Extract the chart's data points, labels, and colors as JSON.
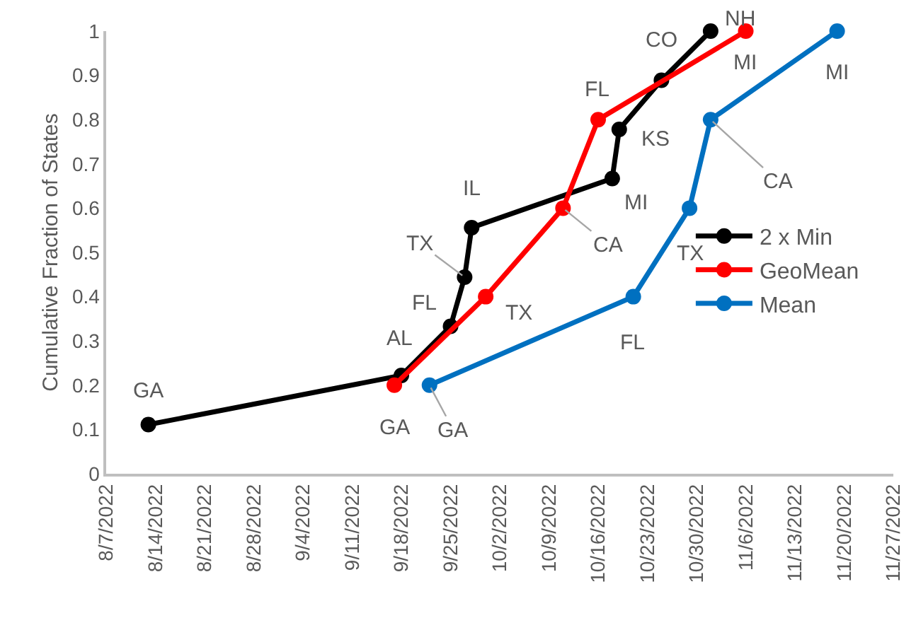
{
  "chart_data": {
    "type": "line",
    "ylabel": "Cumulative Fraction of States",
    "xlim": [
      "2022-08-07",
      "2022-11-27"
    ],
    "xticks": [
      {
        "value": "2022-08-07",
        "label": "8/7/2022"
      },
      {
        "value": "2022-08-14",
        "label": "8/14/2022"
      },
      {
        "value": "2022-08-21",
        "label": "8/21/2022"
      },
      {
        "value": "2022-08-28",
        "label": "8/28/2022"
      },
      {
        "value": "2022-09-04",
        "label": "9/4/2022"
      },
      {
        "value": "2022-09-11",
        "label": "9/11/2022"
      },
      {
        "value": "2022-09-18",
        "label": "9/18/2022"
      },
      {
        "value": "2022-09-25",
        "label": "9/25/2022"
      },
      {
        "value": "2022-10-02",
        "label": "10/2/2022"
      },
      {
        "value": "2022-10-09",
        "label": "10/9/2022"
      },
      {
        "value": "2022-10-16",
        "label": "10/16/2022"
      },
      {
        "value": "2022-10-23",
        "label": "10/23/2022"
      },
      {
        "value": "2022-10-30",
        "label": "10/30/2022"
      },
      {
        "value": "2022-11-06",
        "label": "11/6/2022"
      },
      {
        "value": "2022-11-13",
        "label": "11/13/2022"
      },
      {
        "value": "2022-11-20",
        "label": "11/20/2022"
      },
      {
        "value": "2022-11-27",
        "label": "11/27/2022"
      }
    ],
    "ylim": [
      0,
      1
    ],
    "yticks": [
      0,
      0.1,
      0.2,
      0.3,
      0.4,
      0.5,
      0.6,
      0.7,
      0.8,
      0.9,
      1
    ],
    "legend": "right",
    "marker": "circle",
    "line_style": "solid",
    "series": [
      {
        "name": "2 x Min",
        "color": "#000000",
        "x": [
          "2022-08-13",
          "2022-09-18",
          "2022-09-25",
          "2022-09-27",
          "2022-09-28",
          "2022-10-18",
          "2022-10-19",
          "2022-10-25",
          "2022-11-01"
        ],
        "values": [
          0.111,
          0.222,
          0.333,
          0.444,
          0.556,
          0.667,
          0.778,
          0.889,
          1
        ]
      },
      {
        "name": "GeoMean",
        "color": "#ff0000",
        "x": [
          "2022-09-17",
          "2022-09-30",
          "2022-10-11",
          "2022-10-16",
          "2022-11-06"
        ],
        "values": [
          0.2,
          0.4,
          0.6,
          0.8,
          1
        ]
      },
      {
        "name": "Mean",
        "color": "#0070c0",
        "x": [
          "2022-09-22",
          "2022-10-21",
          "2022-10-29",
          "2022-11-01",
          "2022-11-19"
        ],
        "values": [
          0.2,
          0.4,
          0.6,
          0.8,
          1
        ]
      }
    ],
    "annotations": [
      {
        "text": "GA",
        "x": "2022-08-13",
        "y": 0.111
      },
      {
        "text": "AL",
        "x": "2022-09-18",
        "y": 0.222
      },
      {
        "text": "FL",
        "x": "2022-09-25",
        "y": 0.333
      },
      {
        "text": "TX",
        "x": "2022-09-27",
        "y": 0.444
      },
      {
        "text": "IL",
        "x": "2022-09-28",
        "y": 0.556
      },
      {
        "text": "MI",
        "x": "2022-10-18",
        "y": 0.667
      },
      {
        "text": "KS",
        "x": "2022-10-19",
        "y": 0.778
      },
      {
        "text": "CO",
        "x": "2022-10-25",
        "y": 0.889
      },
      {
        "text": "NH",
        "x": "2022-11-01",
        "y": 1
      },
      {
        "text": "GA",
        "x": "2022-09-17",
        "y": 0.2
      },
      {
        "text": "TX",
        "x": "2022-09-30",
        "y": 0.4
      },
      {
        "text": "CA",
        "x": "2022-10-11",
        "y": 0.6
      },
      {
        "text": "FL",
        "x": "2022-10-16",
        "y": 0.8
      },
      {
        "text": "MI",
        "x": "2022-11-06",
        "y": 1
      },
      {
        "text": "GA",
        "x": "2022-09-22",
        "y": 0.2
      },
      {
        "text": "FL",
        "x": "2022-10-21",
        "y": 0.4
      },
      {
        "text": "TX",
        "x": "2022-10-29",
        "y": 0.6
      },
      {
        "text": "CA",
        "x": "2022-11-01",
        "y": 0.8
      },
      {
        "text": "MI",
        "x": "2022-11-19",
        "y": 1
      }
    ]
  }
}
